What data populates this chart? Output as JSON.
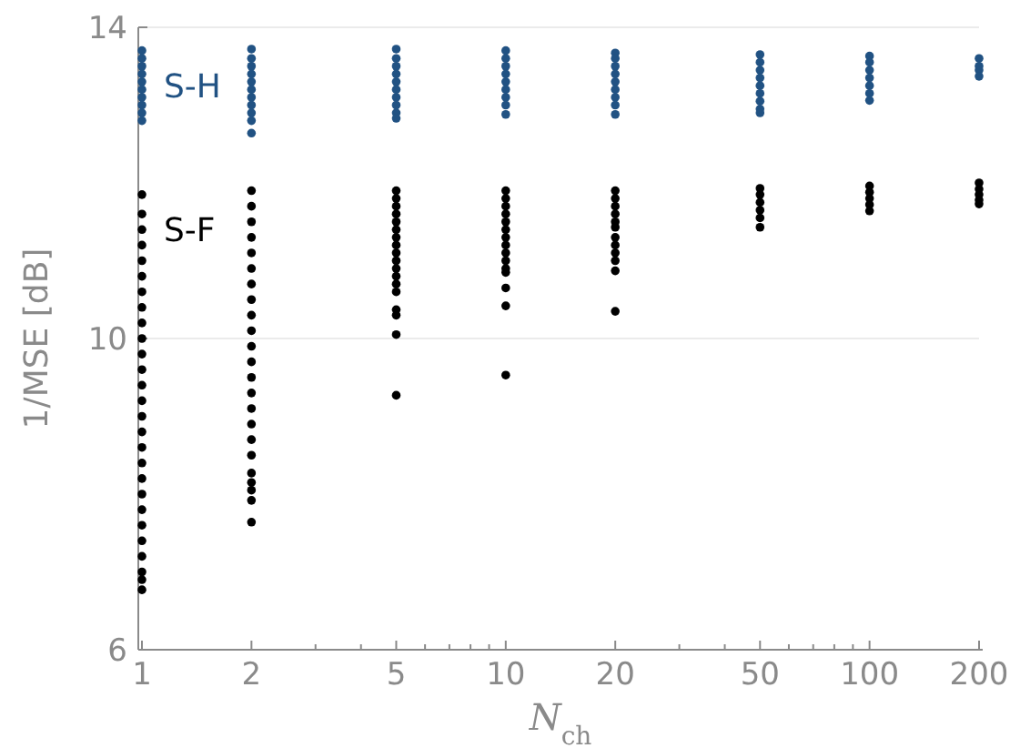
{
  "chart_data": {
    "type": "scatter",
    "xlabel": "N$_{ch}$",
    "ylabel": "1/MSE [dB]",
    "log": "x",
    "xlim": [
      1,
      200
    ],
    "ylim": [
      6,
      14
    ],
    "xticks": [
      1,
      2,
      {
        "value": 3,
        "label": null
      },
      {
        "value": 4,
        "label": null
      },
      5,
      {
        "value": 6,
        "label": null
      },
      {
        "value": 7,
        "label": null
      },
      {
        "value": 8,
        "label": null
      },
      {
        "value": 9,
        "label": null
      },
      10,
      20,
      {
        "value": 30,
        "label": null
      },
      {
        "value": 40,
        "label": null
      },
      50,
      {
        "value": 60,
        "label": null
      },
      {
        "value": 70,
        "label": null
      },
      {
        "value": 80,
        "label": null
      },
      {
        "value": 90,
        "label": null
      },
      100,
      200
    ],
    "yticks": [
      6,
      10,
      14
    ],
    "grid": "y",
    "legend": false,
    "marker": "circle",
    "series": [
      {
        "name": "S-H",
        "color": "#215283",
        "x": [
          1,
          1,
          1,
          1,
          1,
          1,
          1,
          1,
          1,
          1,
          2,
          2,
          2,
          2,
          2,
          2,
          2,
          2,
          2,
          2,
          2,
          5,
          5,
          5,
          5,
          5,
          5,
          5,
          5,
          5,
          5,
          10,
          10,
          10,
          10,
          10,
          10,
          10,
          10,
          10,
          20,
          20,
          20,
          20,
          20,
          20,
          20,
          20,
          20,
          50,
          50,
          50,
          50,
          50,
          50,
          50,
          50,
          50,
          100,
          100,
          100,
          100,
          100,
          100,
          100,
          200,
          200,
          200,
          200
        ],
        "values": [
          13.7,
          13.6,
          13.5,
          13.4,
          13.3,
          13.2,
          13.1,
          13.0,
          12.9,
          12.8,
          13.72,
          13.6,
          13.5,
          13.4,
          13.3,
          13.2,
          13.1,
          13.0,
          12.9,
          12.8,
          12.64,
          13.72,
          13.6,
          13.5,
          13.4,
          13.3,
          13.2,
          13.1,
          13.0,
          12.9,
          12.83,
          13.7,
          13.6,
          13.5,
          13.4,
          13.3,
          13.2,
          13.1,
          13.0,
          12.88,
          13.67,
          13.6,
          13.5,
          13.4,
          13.3,
          13.2,
          13.1,
          13.0,
          12.88,
          13.65,
          13.55,
          13.45,
          13.35,
          13.25,
          13.15,
          13.05,
          12.95,
          12.9,
          13.63,
          13.55,
          13.45,
          13.35,
          13.25,
          13.15,
          13.06,
          13.6,
          13.5,
          13.45,
          13.37
        ]
      },
      {
        "name": "S-F",
        "color": "#000000",
        "x": [
          1,
          1,
          1,
          1,
          1,
          1,
          1,
          1,
          1,
          1,
          1,
          1,
          1,
          1,
          1,
          1,
          1,
          1,
          1,
          1,
          1,
          1,
          1,
          1,
          1,
          1,
          1,
          2,
          2,
          2,
          2,
          2,
          2,
          2,
          2,
          2,
          2,
          2,
          2,
          2,
          2,
          2,
          2,
          2,
          2,
          2,
          2,
          2,
          2,
          2,
          5,
          5,
          5,
          5,
          5,
          5,
          5,
          5,
          5,
          5,
          5,
          5,
          5,
          5,
          5,
          5,
          5,
          5,
          10,
          10,
          10,
          10,
          10,
          10,
          10,
          10,
          10,
          10,
          10,
          10,
          10,
          10,
          10,
          20,
          20,
          20,
          20,
          20,
          20,
          20,
          20,
          20,
          20,
          20,
          20,
          50,
          50,
          50,
          50,
          50,
          50,
          100,
          100,
          100,
          100,
          100,
          200,
          200,
          200,
          200,
          200
        ],
        "values": [
          11.85,
          11.6,
          11.4,
          11.2,
          11.0,
          10.8,
          10.6,
          10.4,
          10.2,
          10.0,
          9.8,
          9.6,
          9.4,
          9.2,
          9.0,
          8.8,
          8.6,
          8.4,
          8.2,
          8.0,
          7.8,
          7.6,
          7.4,
          7.2,
          7.0,
          6.9,
          6.77,
          11.9,
          11.7,
          11.5,
          11.3,
          11.1,
          10.9,
          10.7,
          10.5,
          10.3,
          10.1,
          9.9,
          9.7,
          9.5,
          9.3,
          9.1,
          8.9,
          8.7,
          8.5,
          8.27,
          8.15,
          8.05,
          7.92,
          7.64,
          11.9,
          11.8,
          11.7,
          11.6,
          11.5,
          11.4,
          11.3,
          11.2,
          11.1,
          11.0,
          10.9,
          10.8,
          10.7,
          10.6,
          10.37,
          10.3,
          10.05,
          9.27,
          11.9,
          11.8,
          11.7,
          11.6,
          11.5,
          11.4,
          11.3,
          11.2,
          11.1,
          11.0,
          10.9,
          10.85,
          10.65,
          10.42,
          9.53,
          11.9,
          11.8,
          11.7,
          11.6,
          11.5,
          11.43,
          11.3,
          11.2,
          11.1,
          11.0,
          10.87,
          10.35,
          11.93,
          11.85,
          11.75,
          11.65,
          11.55,
          11.43,
          11.96,
          11.88,
          11.8,
          11.72,
          11.64,
          12.0,
          11.92,
          11.85,
          11.78,
          11.73
        ]
      }
    ]
  }
}
